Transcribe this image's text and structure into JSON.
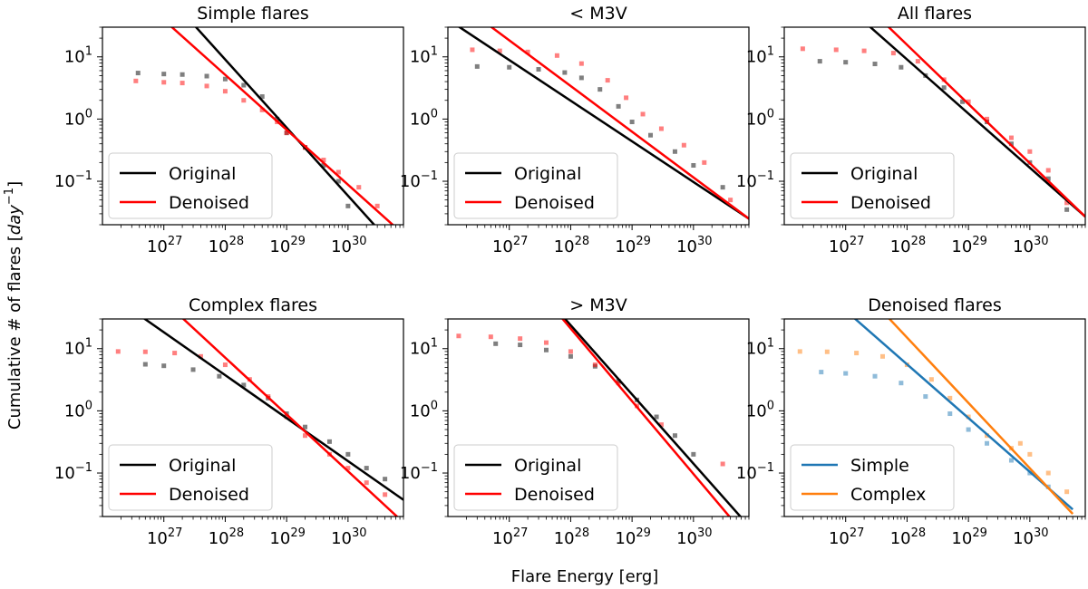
{
  "figure": {
    "xlabel": "Flare Energy [erg]",
    "ylabel": "Cumulative # of flares [",
    "ylabel_unit": "day",
    "ylabel_exp": "−1",
    "ylabel_close": "]"
  },
  "chart_data": [
    {
      "type": "scatter",
      "title": "Simple flares",
      "xscale": "log",
      "yscale": "log",
      "xlim": [
        1e+26,
        8e+30
      ],
      "ylim": [
        0.02,
        30
      ],
      "x_ticks": [
        1e+27,
        1e+28,
        1e+29,
        1e+30
      ],
      "x_tick_labels": [
        {
          "base": "10",
          "exp": "27"
        },
        {
          "base": "10",
          "exp": "28"
        },
        {
          "base": "10",
          "exp": "29"
        },
        {
          "base": "10",
          "exp": "30"
        }
      ],
      "y_ticks": [
        0.1,
        1,
        10
      ],
      "y_tick_labels": [
        {
          "base": "10",
          "exp": "−1"
        },
        {
          "base": "10",
          "exp": "0"
        },
        {
          "base": "10",
          "exp": "1"
        }
      ],
      "legend_loc": "lower-left",
      "series": [
        {
          "name": "Original",
          "color": "#000000",
          "x": [
            3.8e+26,
            1e+27,
            2e+27,
            5e+27,
            1e+28,
            2e+28,
            4e+28,
            7e+28,
            1e+29,
            2e+29,
            4e+29,
            7e+29,
            1e+30
          ],
          "y": [
            5.5,
            5.3,
            5.2,
            4.9,
            4.4,
            3.5,
            2.3,
            1.0,
            0.6,
            0.35,
            0.18,
            0.1,
            0.04
          ],
          "fit": {
            "x": [
              1e+26,
              8e+30
            ],
            "y": [
              1400,
              0.006
            ]
          }
        },
        {
          "name": "Denoised",
          "color": "#ff0000",
          "x": [
            3.5e+26,
            1e+27,
            2e+27,
            5e+27,
            1e+28,
            2e+28,
            4e+28,
            7e+28,
            1e+29,
            2e+29,
            4e+29,
            7e+29,
            1.5e+30,
            3e+30
          ],
          "y": [
            4.1,
            3.9,
            3.8,
            3.4,
            2.8,
            2.0,
            1.4,
            0.9,
            0.6,
            0.35,
            0.22,
            0.14,
            0.08,
            0.04
          ],
          "fit": {
            "x": [
              1e+26,
              8e+30
            ],
            "y": [
              300,
              0.014
            ]
          }
        }
      ]
    },
    {
      "type": "scatter",
      "title": "< M3V",
      "xscale": "log",
      "yscale": "log",
      "xlim": [
        1e+26,
        8e+30
      ],
      "ylim": [
        0.02,
        30
      ],
      "x_ticks": [
        1e+27,
        1e+28,
        1e+29,
        1e+30
      ],
      "x_tick_labels": [
        {
          "base": "10",
          "exp": "27"
        },
        {
          "base": "10",
          "exp": "28"
        },
        {
          "base": "10",
          "exp": "29"
        },
        {
          "base": "10",
          "exp": "30"
        }
      ],
      "y_ticks": [
        0.1,
        1,
        10
      ],
      "y_tick_labels": [
        {
          "base": "10",
          "exp": "−1"
        },
        {
          "base": "10",
          "exp": "0"
        },
        {
          "base": "10",
          "exp": "1"
        }
      ],
      "legend_loc": "lower-left",
      "series": [
        {
          "name": "Original",
          "color": "#000000",
          "x": [
            3e+26,
            1e+27,
            3e+27,
            8e+27,
            1.5e+28,
            3e+28,
            6e+28,
            1e+29,
            2e+29,
            5e+29,
            1e+30,
            3e+30
          ],
          "y": [
            7.0,
            6.8,
            6.3,
            5.6,
            4.6,
            3.0,
            1.6,
            0.9,
            0.55,
            0.3,
            0.18,
            0.08
          ],
          "fit": {
            "x": [
              1e+26,
              8e+30
            ],
            "y": [
              40,
              0.025
            ]
          }
        },
        {
          "name": "Denoised",
          "color": "#ff0000",
          "x": [
            2.5e+26,
            7e+26,
            2e+27,
            6e+27,
            1.5e+28,
            4e+28,
            8e+28,
            1.5e+29,
            3e+29,
            7e+29,
            1.5e+30,
            4e+30
          ],
          "y": [
            13,
            12.5,
            12,
            10.5,
            7.8,
            4.2,
            2.2,
            1.2,
            0.7,
            0.38,
            0.2,
            0.05
          ],
          "fit": {
            "x": [
              1e+26,
              8e+30
            ],
            "y": [
              100,
              0.025
            ]
          }
        }
      ]
    },
    {
      "type": "scatter",
      "title": "All flares",
      "xscale": "log",
      "yscale": "log",
      "xlim": [
        1e+26,
        8e+30
      ],
      "ylim": [
        0.02,
        30
      ],
      "x_ticks": [
        1e+27,
        1e+28,
        1e+29,
        1e+30
      ],
      "x_tick_labels": [
        {
          "base": "10",
          "exp": "27"
        },
        {
          "base": "10",
          "exp": "28"
        },
        {
          "base": "10",
          "exp": "29"
        },
        {
          "base": "10",
          "exp": "30"
        }
      ],
      "y_ticks": [
        0.1,
        1,
        10
      ],
      "y_tick_labels": [
        {
          "base": "10",
          "exp": "−1"
        },
        {
          "base": "10",
          "exp": "0"
        },
        {
          "base": "10",
          "exp": "1"
        }
      ],
      "legend_loc": "lower-left",
      "series": [
        {
          "name": "Original",
          "color": "#000000",
          "x": [
            3.8e+26,
            1e+27,
            3e+27,
            8e+27,
            2e+28,
            4e+28,
            8e+28,
            2e+29,
            5e+29,
            1e+30,
            2e+30,
            4e+30
          ],
          "y": [
            8.5,
            8.2,
            7.7,
            6.8,
            5.0,
            3.2,
            1.9,
            0.9,
            0.4,
            0.2,
            0.11,
            0.035
          ],
          "fit": {
            "x": [
              1e+26,
              8e+30
            ],
            "y": [
              500,
              0.027
            ]
          }
        },
        {
          "name": "Denoised",
          "color": "#ff0000",
          "x": [
            2e+26,
            7e+26,
            2e+27,
            6e+27,
            1.5e+28,
            4e+28,
            1e+29,
            2e+29,
            5e+29,
            1e+30,
            2e+30,
            4e+30
          ],
          "y": [
            13.5,
            13,
            12.5,
            11.5,
            8.5,
            4.3,
            1.9,
            1.0,
            0.5,
            0.3,
            0.15,
            0.045
          ],
          "fit": {
            "x": [
              1e+26,
              8e+30
            ],
            "y": [
              1250,
              0.027
            ]
          }
        }
      ]
    },
    {
      "type": "scatter",
      "title": "Complex flares",
      "xscale": "log",
      "yscale": "log",
      "xlim": [
        1e+26,
        8e+30
      ],
      "ylim": [
        0.02,
        30
      ],
      "x_ticks": [
        1e+27,
        1e+28,
        1e+29,
        1e+30
      ],
      "x_tick_labels": [
        {
          "base": "10",
          "exp": "27"
        },
        {
          "base": "10",
          "exp": "28"
        },
        {
          "base": "10",
          "exp": "29"
        },
        {
          "base": "10",
          "exp": "30"
        }
      ],
      "y_ticks": [
        0.1,
        1,
        10
      ],
      "y_tick_labels": [
        {
          "base": "10",
          "exp": "−1"
        },
        {
          "base": "10",
          "exp": "0"
        },
        {
          "base": "10",
          "exp": "1"
        }
      ],
      "legend_loc": "lower-left",
      "series": [
        {
          "name": "Original",
          "color": "#000000",
          "x": [
            5e+26,
            1e+27,
            3e+27,
            8e+27,
            2e+28,
            5e+28,
            1e+29,
            2e+29,
            5e+29,
            1e+30,
            2e+30,
            4e+30
          ],
          "y": [
            5.6,
            5.3,
            4.6,
            3.6,
            2.6,
            1.6,
            0.9,
            0.55,
            0.32,
            0.2,
            0.12,
            0.08
          ],
          "fit": {
            "x": [
              1e+26,
              8e+30
            ],
            "y": [
              90,
              0.037
            ]
          }
        },
        {
          "name": "Denoised",
          "color": "#ff0000",
          "x": [
            1.8e+26,
            5e+26,
            1.5e+27,
            4e+27,
            1e+28,
            2.5e+28,
            5e+28,
            1e+29,
            2e+29,
            5e+29,
            1e+30,
            2e+30,
            4e+30
          ],
          "y": [
            9,
            8.9,
            8.5,
            7.5,
            5.5,
            3.2,
            1.7,
            0.8,
            0.4,
            0.2,
            0.12,
            0.07,
            0.045
          ],
          "fit": {
            "x": [
              1e+26,
              8e+30
            ],
            "y": [
              480,
              0.016
            ]
          }
        }
      ]
    },
    {
      "type": "scatter",
      "title": "> M3V",
      "xscale": "log",
      "yscale": "log",
      "xlim": [
        1e+26,
        8e+30
      ],
      "ylim": [
        0.02,
        30
      ],
      "x_ticks": [
        1e+27,
        1e+28,
        1e+29,
        1e+30
      ],
      "x_tick_labels": [
        {
          "base": "10",
          "exp": "27"
        },
        {
          "base": "10",
          "exp": "28"
        },
        {
          "base": "10",
          "exp": "29"
        },
        {
          "base": "10",
          "exp": "30"
        }
      ],
      "y_ticks": [
        0.1,
        1,
        10
      ],
      "y_tick_labels": [
        {
          "base": "10",
          "exp": "−1"
        },
        {
          "base": "10",
          "exp": "0"
        },
        {
          "base": "10",
          "exp": "1"
        }
      ],
      "legend_loc": "lower-left",
      "series": [
        {
          "name": "Original",
          "color": "#000000",
          "x": [
            6e+26,
            1.5e+27,
            4e+27,
            1e+28,
            2.5e+28,
            6e+28,
            1.2e+29,
            2.5e+29,
            5e+29,
            1e+30
          ],
          "y": [
            12,
            11.5,
            9.5,
            7.5,
            5.2,
            3.0,
            1.5,
            0.8,
            0.4,
            0.2
          ],
          "fit": {
            "x": [
              1e+26,
              8e+30
            ],
            "y": [
              4000,
              0.014
            ]
          }
        },
        {
          "name": "Denoised",
          "color": "#ff0000",
          "x": [
            1.5e+26,
            5e+26,
            1.5e+27,
            4e+27,
            1e+28,
            2.5e+28,
            6e+28,
            1.2e+29,
            3e+29,
            3e+30
          ],
          "y": [
            16,
            15.5,
            14.5,
            12.5,
            9.0,
            5.5,
            2.8,
            1.2,
            0.6,
            0.14
          ],
          "fit": {
            "x": [
              1e+26,
              8e+30
            ],
            "y": [
              4600,
              0.0085
            ]
          }
        }
      ]
    },
    {
      "type": "scatter",
      "title": "Denoised flares",
      "xscale": "log",
      "yscale": "log",
      "xlim": [
        1e+26,
        8e+30
      ],
      "ylim": [
        0.02,
        30
      ],
      "x_ticks": [
        1e+27,
        1e+28,
        1e+29,
        1e+30
      ],
      "x_tick_labels": [
        {
          "base": "10",
          "exp": "27"
        },
        {
          "base": "10",
          "exp": "28"
        },
        {
          "base": "10",
          "exp": "29"
        },
        {
          "base": "10",
          "exp": "30"
        }
      ],
      "y_ticks": [
        0.1,
        1,
        10
      ],
      "y_tick_labels": [
        {
          "base": "10",
          "exp": "−1"
        },
        {
          "base": "10",
          "exp": "0"
        },
        {
          "base": "10",
          "exp": "1"
        }
      ],
      "legend_loc": "lower-left",
      "series": [
        {
          "name": "Simple",
          "color": "#1f77b4",
          "x": [
            4e+26,
            1e+27,
            3e+27,
            8e+27,
            2e+28,
            5e+28,
            1e+29,
            2e+29,
            5e+29,
            1e+30,
            2e+30
          ],
          "y": [
            4.2,
            4.0,
            3.6,
            2.8,
            1.7,
            0.9,
            0.5,
            0.3,
            0.16,
            0.1,
            0.06
          ],
          "fit": {
            "x": [
              1e+26,
              5e+30
            ],
            "y": [
              300,
              0.026
            ]
          }
        },
        {
          "name": "Complex",
          "color": "#ff7f0e",
          "x": [
            1.8e+26,
            5e+26,
            1.5e+27,
            4e+27,
            1e+28,
            2.5e+28,
            5e+28,
            1e+29,
            2e+29,
            5e+29,
            7e+29,
            1e+30,
            2e+30,
            4e+30
          ],
          "y": [
            9,
            8.9,
            8.5,
            7.5,
            5.5,
            3.2,
            1.6,
            0.8,
            0.4,
            0.25,
            0.3,
            0.2,
            0.1,
            0.05
          ],
          "fit": {
            "x": [
              1e+26,
              5e+30
            ],
            "y": [
              1900,
              0.022
            ]
          }
        }
      ]
    }
  ]
}
